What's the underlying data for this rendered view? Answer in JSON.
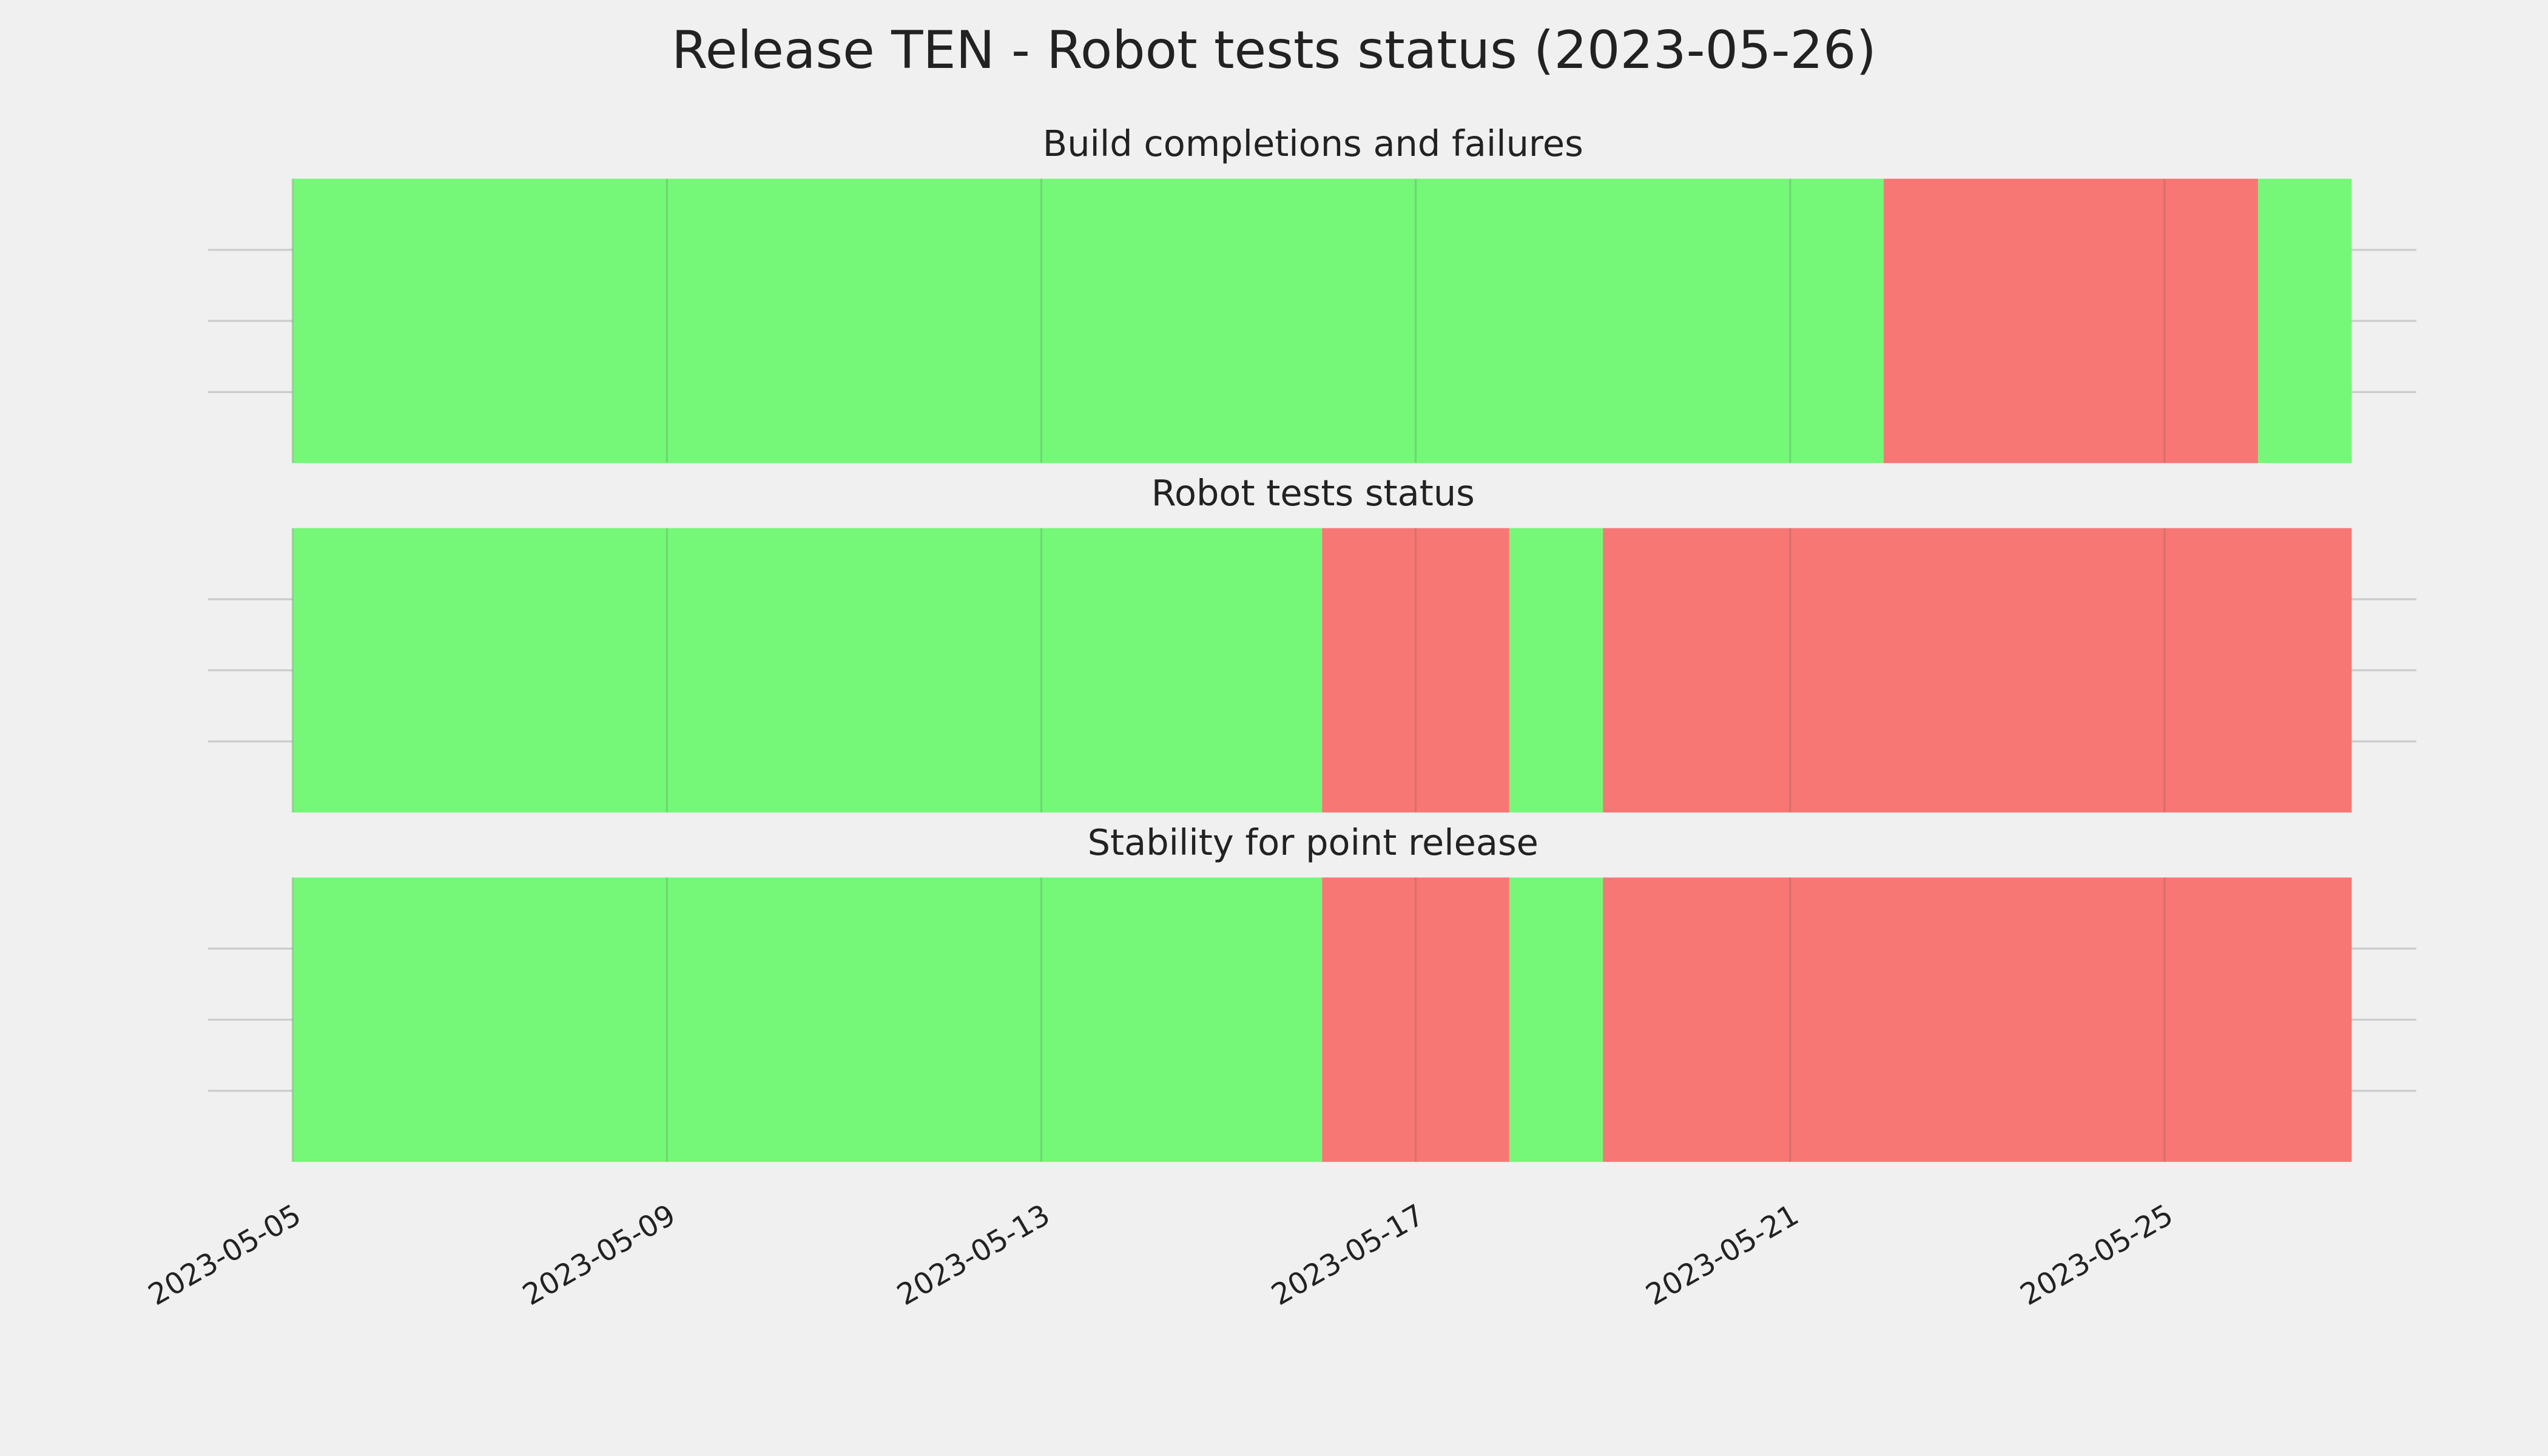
{
  "title": "Release TEN - Robot tests status (2023-05-26)",
  "chart_data": [
    {
      "type": "timeline",
      "title": "Build completions and failures",
      "segments": [
        {
          "start": "2023-05-05",
          "end": "2023-05-22",
          "color": "#75f778"
        },
        {
          "start": "2023-05-22",
          "end": "2023-05-26",
          "color": "#f77775"
        },
        {
          "start": "2023-05-26",
          "end": "2023-05-27",
          "color": "#75f778"
        }
      ],
      "xlim": [
        "2023-05-04",
        "2023-05-28"
      ],
      "ylim": [
        0,
        1
      ],
      "yticks": [
        0.25,
        0.5,
        0.75
      ],
      "grid": true
    },
    {
      "type": "timeline",
      "title": "Robot tests status",
      "segments": [
        {
          "start": "2023-05-05",
          "end": "2023-05-16",
          "color": "#75f778"
        },
        {
          "start": "2023-05-16",
          "end": "2023-05-18",
          "color": "#f77775"
        },
        {
          "start": "2023-05-18",
          "end": "2023-05-19",
          "color": "#75f778"
        },
        {
          "start": "2023-05-19",
          "end": "2023-05-27",
          "color": "#f77775"
        }
      ],
      "xlim": [
        "2023-05-04",
        "2023-05-28"
      ],
      "ylim": [
        0,
        1
      ],
      "yticks": [
        0.25,
        0.5,
        0.75
      ],
      "grid": true
    },
    {
      "type": "timeline",
      "title": "Stability for point release",
      "segments": [
        {
          "start": "2023-05-05",
          "end": "2023-05-16",
          "color": "#75f778"
        },
        {
          "start": "2023-05-16",
          "end": "2023-05-18",
          "color": "#f77775"
        },
        {
          "start": "2023-05-18",
          "end": "2023-05-19",
          "color": "#75f778"
        },
        {
          "start": "2023-05-19",
          "end": "2023-05-27",
          "color": "#f77775"
        }
      ],
      "xlim": [
        "2023-05-04",
        "2023-05-28"
      ],
      "ylim": [
        0,
        1
      ],
      "yticks": [
        0.25,
        0.5,
        0.75
      ],
      "grid": true,
      "xticks": [
        "2023-05-05",
        "2023-05-09",
        "2023-05-13",
        "2023-05-17",
        "2023-05-21",
        "2023-05-25"
      ]
    }
  ]
}
